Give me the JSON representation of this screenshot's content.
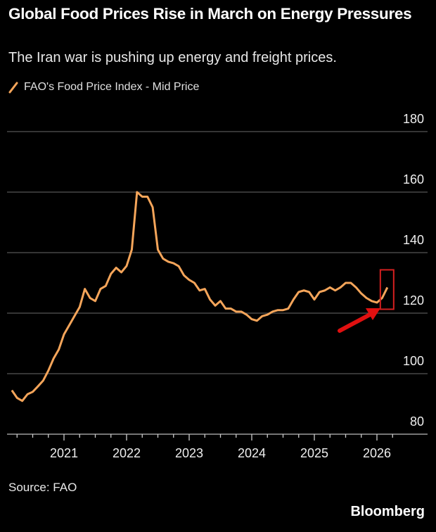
{
  "chart_data": {
    "type": "line",
    "title": "Global Food Prices Rise in March on Energy Pressures",
    "subtitle": "The Iran war is pushing up energy and freight prices.",
    "series": [
      {
        "name": "FAO's Food Price Index - Mid Price",
        "color": "#f5a55a",
        "start": "2020-03",
        "frequency": "monthly",
        "values": [
          94.5,
          92,
          91,
          93.2,
          94,
          95.8,
          97.7,
          101,
          105,
          108,
          113,
          116,
          119,
          122,
          128,
          125,
          124,
          128,
          129,
          133,
          135,
          133.5,
          135.6,
          141,
          160,
          158.5,
          158.5,
          155,
          141,
          138,
          137,
          136.5,
          135.5,
          132.5,
          131,
          130,
          127.5,
          128,
          124.5,
          122.5,
          124,
          121.5,
          121.5,
          120.5,
          120.5,
          119.5,
          118,
          117.5,
          119,
          119.5,
          120.5,
          121,
          121,
          121.5,
          124.5,
          127,
          127.5,
          127,
          124.5,
          127,
          127.5,
          128.5,
          127.5,
          128.5,
          130,
          130,
          128.5,
          126.5,
          125,
          124,
          123.5,
          125,
          128.5
        ]
      }
    ],
    "x_ticks": [
      "2021",
      "2022",
      "2023",
      "2024",
      "2025",
      "2026"
    ],
    "y_ticks": [
      80,
      100,
      120,
      140,
      160,
      180
    ],
    "ylim": [
      80,
      180
    ],
    "grid": true,
    "y_axis_side": "right",
    "legend_placement": "top-left",
    "annotations": {
      "highlight_box_color": "#d42020",
      "arrow_color": "#e01010"
    }
  },
  "source": "Source: FAO",
  "brand": "Bloomberg"
}
